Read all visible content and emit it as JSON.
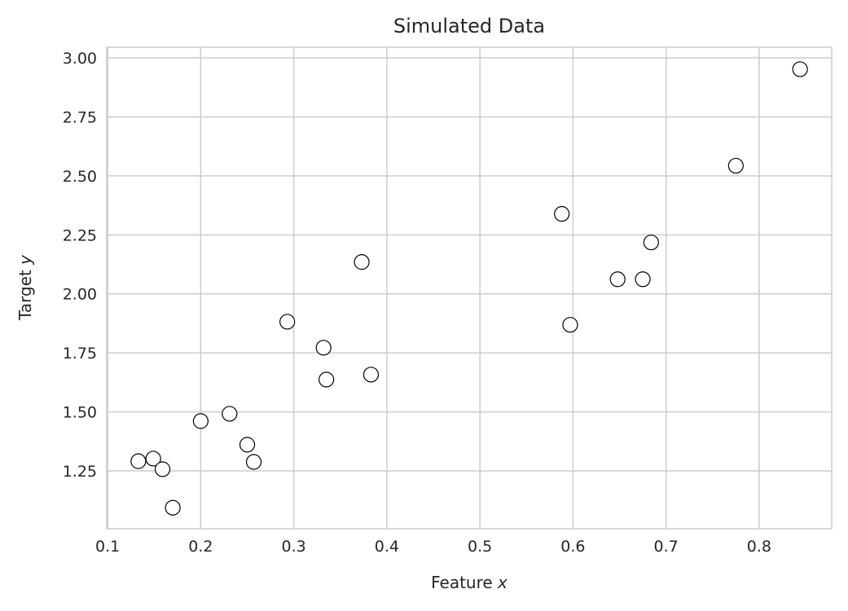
{
  "chart_data": {
    "type": "scatter",
    "title": "Simulated Data",
    "xlabel_prefix": "Feature ",
    "xlabel_var": "x",
    "ylabel_prefix": "Target ",
    "ylabel_var": "y",
    "xlim": [
      0.099,
      0.878
    ],
    "ylim": [
      1.005,
      3.045
    ],
    "xticks": [
      0.1,
      0.2,
      0.3,
      0.4,
      0.5,
      0.6,
      0.7,
      0.8
    ],
    "xtick_labels": [
      "0.1",
      "0.2",
      "0.3",
      "0.4",
      "0.5",
      "0.6",
      "0.7",
      "0.8"
    ],
    "yticks": [
      1.25,
      1.5,
      1.75,
      2.0,
      2.25,
      2.5,
      2.75,
      3.0
    ],
    "ytick_labels": [
      "1.25",
      "1.50",
      "1.75",
      "2.00",
      "2.25",
      "2.50",
      "2.75",
      "3.00"
    ],
    "grid": true,
    "marker_face": "#ffffff",
    "marker_edge": "#000000",
    "grid_color": "#cccccc",
    "points": [
      {
        "x": 0.133,
        "y": 1.291
      },
      {
        "x": 0.149,
        "y": 1.302
      },
      {
        "x": 0.159,
        "y": 1.257
      },
      {
        "x": 0.17,
        "y": 1.094
      },
      {
        "x": 0.2,
        "y": 1.461
      },
      {
        "x": 0.231,
        "y": 1.492
      },
      {
        "x": 0.25,
        "y": 1.361
      },
      {
        "x": 0.257,
        "y": 1.288
      },
      {
        "x": 0.293,
        "y": 1.882
      },
      {
        "x": 0.332,
        "y": 1.772
      },
      {
        "x": 0.335,
        "y": 1.637
      },
      {
        "x": 0.373,
        "y": 2.135
      },
      {
        "x": 0.383,
        "y": 1.658
      },
      {
        "x": 0.588,
        "y": 2.339
      },
      {
        "x": 0.597,
        "y": 1.869
      },
      {
        "x": 0.648,
        "y": 2.062
      },
      {
        "x": 0.675,
        "y": 2.062
      },
      {
        "x": 0.684,
        "y": 2.218
      },
      {
        "x": 0.775,
        "y": 2.543
      },
      {
        "x": 0.844,
        "y": 2.952
      }
    ]
  }
}
